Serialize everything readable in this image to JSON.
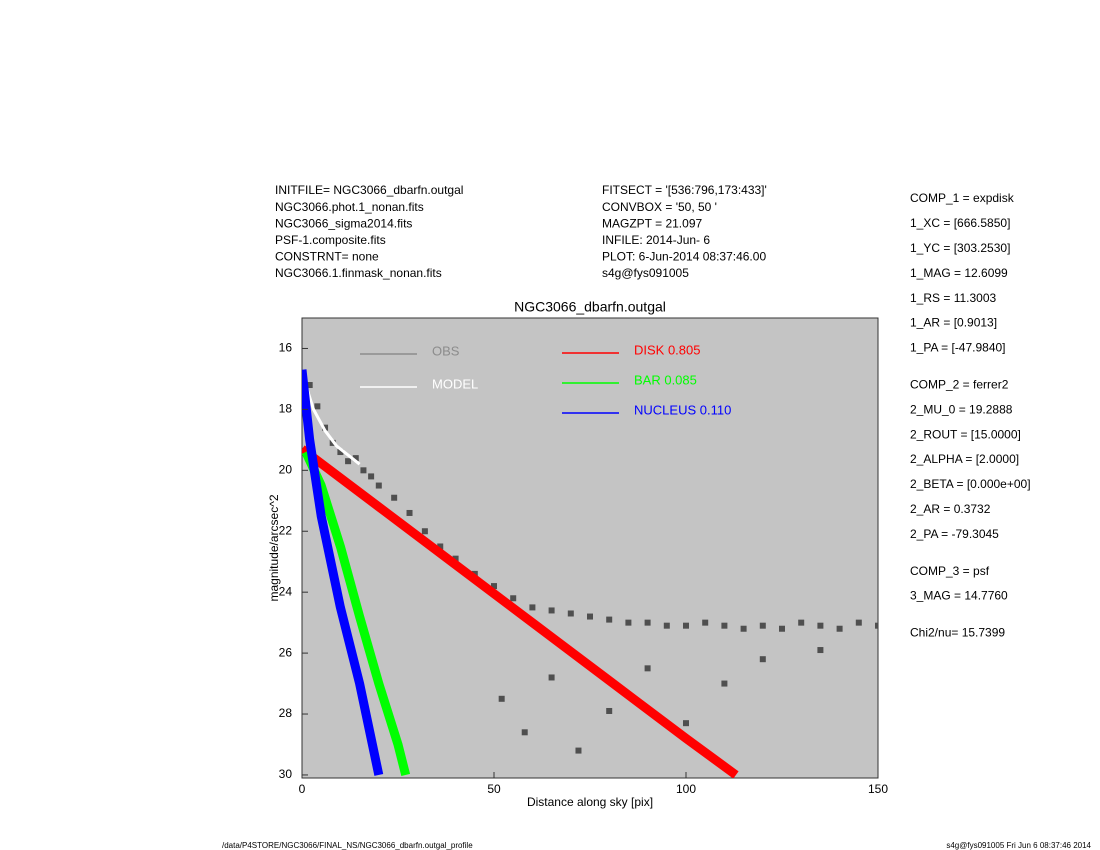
{
  "chart_data": {
    "type": "scatter",
    "title": "NGC3066_dbarfn.outgal",
    "x_label": "Distance along sky [pix]",
    "y_label": "magnitude/arcsec^2",
    "header_left": [
      "INITFILE= NGC3066_dbarfn.outgal",
      "NGC3066.phot.1_nonan.fits",
      "NGC3066_sigma2014.fits",
      "PSF-1.composite.fits",
      "CONSTRNT= none",
      "NGC3066.1.finmask_nonan.fits"
    ],
    "header_mid": [
      "FITSECT = '[536:796,173:433]'",
      "CONVBOX = '50, 50  '",
      "MAGZPT =             21.097",
      "INFILE: 2014-Jun- 6",
      "PLOT:  6-Jun-2014 08:37:46.00",
      "s4g@fys091005"
    ],
    "components": [
      [
        "COMP_1  = expdisk",
        "1_XC    = [666.5850]",
        "1_YC    = [303.2530]",
        "1_MAG   = 12.6099",
        "1_RS    = 11.3003",
        "1_AR    = [0.9013]",
        "1_PA    = [-47.9840]"
      ],
      [
        "COMP_2  = ferrer2",
        "2_MU_0  = 19.2888",
        "2_ROUT  = [15.0000]",
        "2_ALPHA = [2.0000]",
        "2_BETA  = [0.000e+00]",
        "2_AR    = 0.3732",
        "2_PA    = -79.3045"
      ],
      [
        "COMP_3  = psf",
        "3_MAG   = 14.7760"
      ],
      [
        "Chi2/nu=     15.7399"
      ]
    ],
    "footer_left": "/data/P4STORE/NGC3066/FINAL_NS/NGC3066_dbarfn.outgal_profile",
    "footer_right": "s4g@fys091005  Fri Jun  6 08:37:46 2014",
    "xlim": [
      0,
      150
    ],
    "xticks": [
      0,
      50,
      100,
      150
    ],
    "ylim": [
      30.1,
      15
    ],
    "yticks": [
      16,
      18,
      20,
      22,
      24,
      26,
      28,
      30
    ],
    "background": "#c4c4c4",
    "series": [
      {
        "name": "OBS",
        "color": "#4f4f4f",
        "legend_color": "#8c8c8c",
        "style": "points",
        "x": [
          2,
          4,
          6,
          8,
          10,
          12,
          14,
          16,
          18,
          20,
          24,
          28,
          32,
          36,
          40,
          45,
          50,
          55,
          60,
          65,
          70,
          75,
          80,
          85,
          90,
          95,
          100,
          105,
          110,
          115,
          120,
          125,
          130,
          135,
          140,
          145,
          150,
          52,
          58,
          65,
          72,
          80,
          90,
          100,
          110,
          120,
          135
        ],
        "values": [
          17.2,
          17.9,
          18.6,
          19.1,
          19.4,
          19.7,
          19.6,
          20.0,
          20.2,
          20.5,
          20.9,
          21.4,
          22.0,
          22.5,
          22.9,
          23.4,
          23.8,
          24.2,
          24.5,
          24.6,
          24.7,
          24.8,
          24.9,
          25.0,
          25.0,
          25.1,
          25.1,
          25.0,
          25.1,
          25.2,
          25.1,
          25.2,
          25.0,
          25.1,
          25.2,
          25.0,
          25.1,
          27.5,
          28.6,
          26.8,
          29.2,
          27.9,
          26.5,
          28.3,
          27.0,
          26.2,
          25.9
        ]
      },
      {
        "name": "MODEL",
        "color": "#ffffff",
        "style": "line",
        "x": [
          0,
          3,
          6,
          9,
          12,
          15
        ],
        "values": [
          16.8,
          18.0,
          18.7,
          19.2,
          19.5,
          19.8
        ]
      },
      {
        "name": "DISK  0.805",
        "color": "#ff0000",
        "style": "band",
        "x": [
          0,
          20,
          40,
          60,
          80,
          100,
          113
        ],
        "values": [
          19.3,
          21.2,
          23.1,
          25.0,
          26.9,
          28.8,
          30.0
        ]
      },
      {
        "name": "BAR  0.085",
        "color": "#00ff00",
        "style": "band",
        "x": [
          1,
          5,
          10,
          15,
          20,
          25,
          27
        ],
        "values": [
          19.4,
          20.5,
          22.5,
          24.8,
          27.0,
          29.0,
          30.0
        ]
      },
      {
        "name": "NUCLEUS  0.110",
        "color": "#0000ff",
        "style": "band",
        "x": [
          0,
          2,
          5,
          10,
          15,
          20
        ],
        "values": [
          16.7,
          19.0,
          21.5,
          24.5,
          27.0,
          30.0
        ]
      }
    ]
  }
}
